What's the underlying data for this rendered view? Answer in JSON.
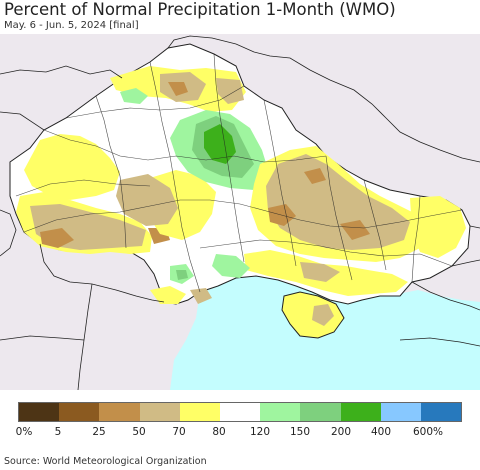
{
  "title": "Percent of Normal Precipitation 1-Month (WMO)",
  "subtitle": "May. 6 - Jun. 5, 2024 [final]",
  "source": "Source: World Meteorological Organization",
  "colors": {
    "outside": "#ede8ee",
    "sea": "#c4fdfe",
    "border": "#222222"
  },
  "legend": {
    "swatches": [
      "#4d3415",
      "#8b5a20",
      "#c28f4a",
      "#d0bb85",
      "#ffff66",
      "#ffffff",
      "#9ff59f",
      "#7ed07e",
      "#3db01b",
      "#87c8ff",
      "#2779bd"
    ],
    "labels": [
      "0%",
      "5",
      "25",
      "50",
      "70",
      "80",
      "120",
      "150",
      "200",
      "400",
      "600%"
    ]
  }
}
